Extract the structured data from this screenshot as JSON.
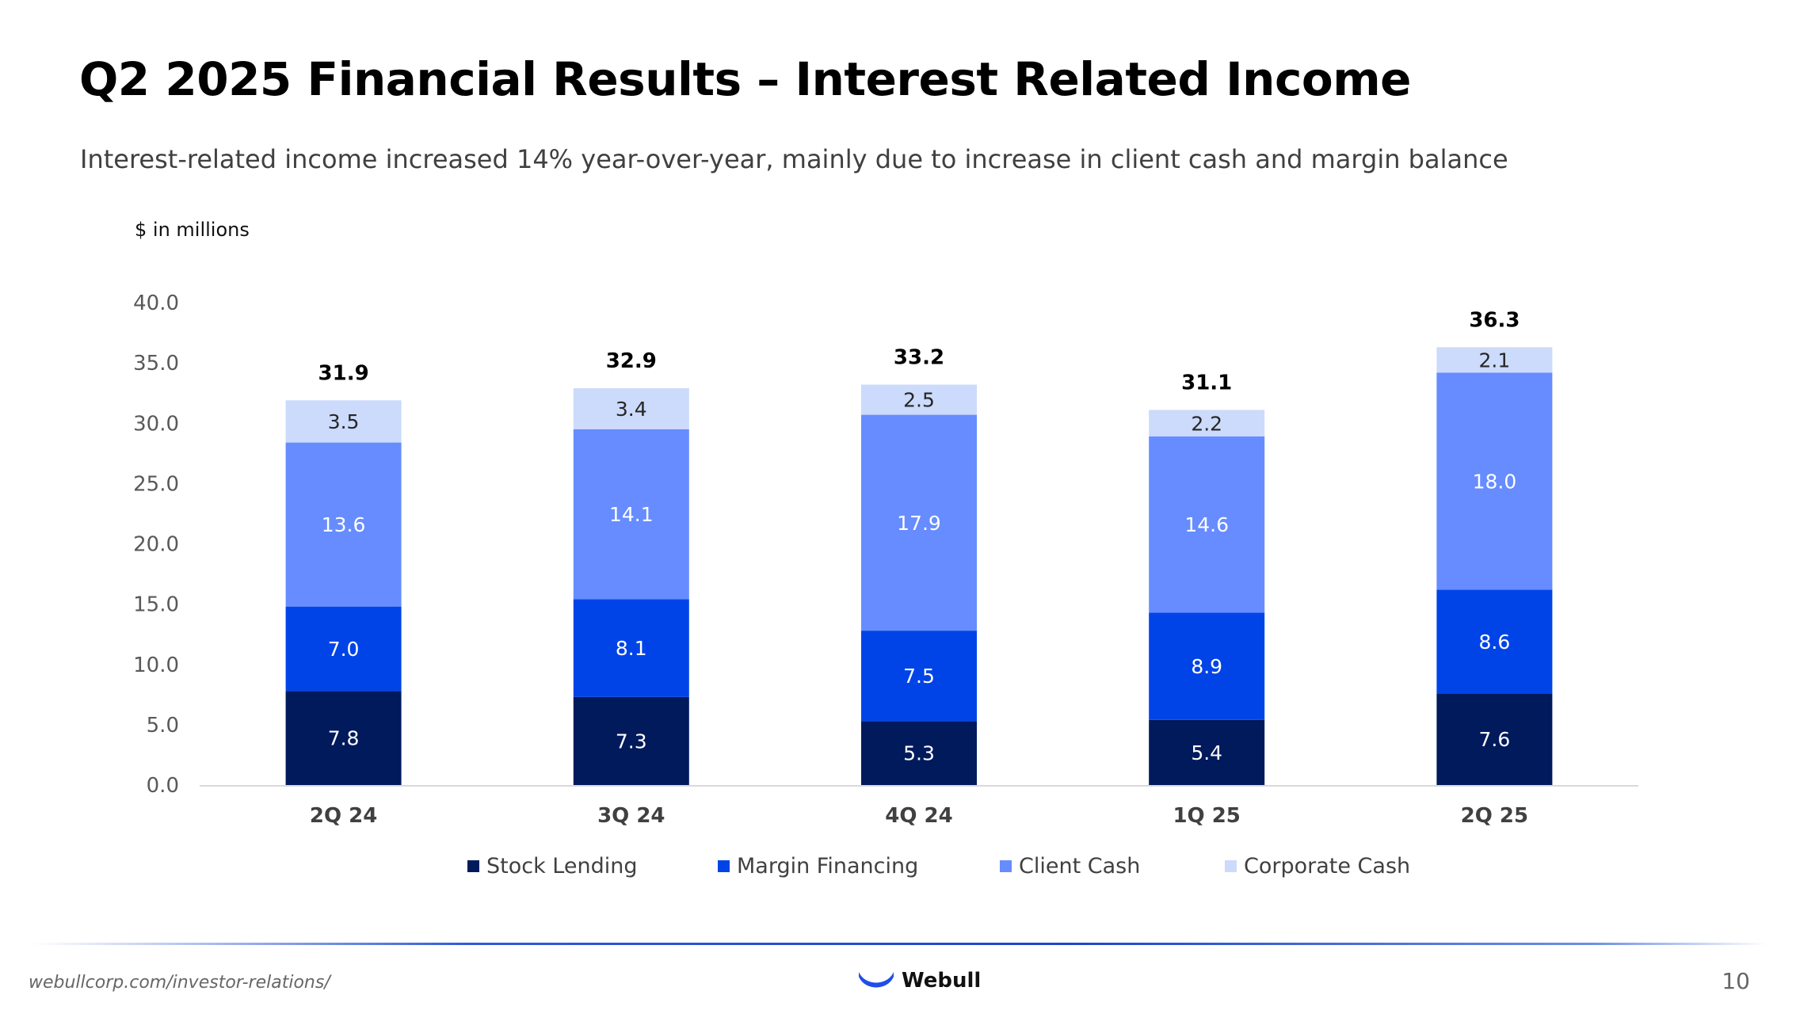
{
  "header": {
    "title": "Q2 2025 Financial Results – Interest Related Income",
    "subtitle": "Interest-related income increased 14% year-over-year, mainly due to increase in client cash and margin balance"
  },
  "chart_data": {
    "type": "bar",
    "stacked": true,
    "units_label": "$ in millions",
    "categories": [
      "2Q 24",
      "3Q 24",
      "4Q 24",
      "1Q 25",
      "2Q 25"
    ],
    "series": [
      {
        "name": "Stock Lending",
        "color": "#001a5c",
        "values": [
          7.8,
          7.3,
          5.3,
          5.4,
          7.6
        ]
      },
      {
        "name": "Margin Financing",
        "color": "#0044e8",
        "values": [
          7.0,
          8.1,
          7.5,
          8.9,
          8.6
        ]
      },
      {
        "name": "Client Cash",
        "color": "#668cff",
        "values": [
          13.6,
          14.1,
          17.9,
          14.6,
          18.0
        ]
      },
      {
        "name": "Corporate Cash",
        "color": "#ccdafb",
        "values": [
          3.5,
          3.4,
          2.5,
          2.2,
          2.1
        ]
      }
    ],
    "totals": [
      "31.9",
      "32.9",
      "33.2",
      "31.1",
      "36.3"
    ],
    "ylim": [
      0,
      40
    ],
    "yticks": [
      "0.0",
      "5.0",
      "10.0",
      "15.0",
      "20.0",
      "25.0",
      "30.0",
      "35.0",
      "40.0"
    ],
    "grid": false,
    "legend_position": "bottom"
  },
  "footer": {
    "url": "webullcorp.com/investor-relations/",
    "brand": "Webull",
    "page_number": "10"
  }
}
